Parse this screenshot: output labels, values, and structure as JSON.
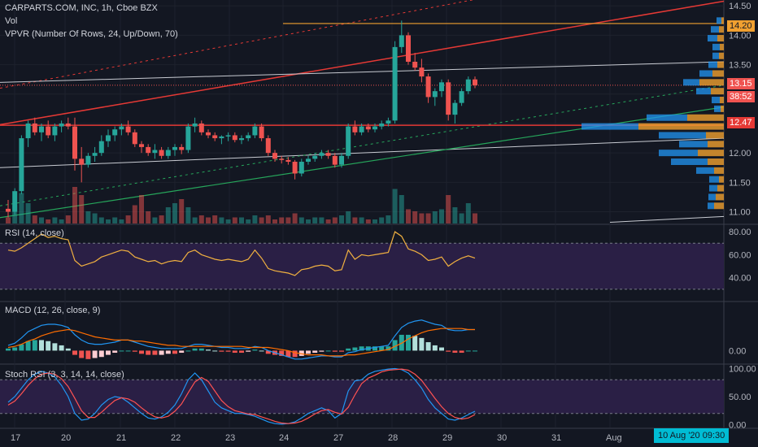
{
  "header": {
    "symbol_line": "CARPARTS.COM, INC, 1h, Cboe BZX",
    "vol_label": "Vol",
    "vpvr_label": "VPVR (Number Of Rows, 24, Up/Down, 70)"
  },
  "price_tags": {
    "last": "13.15",
    "countdown": "38:52",
    "level_1": "14.20",
    "level_2": "12.47"
  },
  "datetime_box": "10 Aug '20   09:30",
  "colors": {
    "background": "#131722",
    "up": "#26a69a",
    "down": "#ef5350",
    "orange": "#f0a030",
    "red_line": "#e53935",
    "green_line": "#26a65b",
    "rsi_fill": "#2a1f45",
    "macd_line": "#2196f3",
    "signal_line": "#ff6d00",
    "stoch_k": "#2196f3",
    "stoch_d": "#ff5252"
  },
  "chart_data": [
    {
      "type": "candlestick",
      "title": "CARPARTS.COM, INC, 1h, Cboe BZX",
      "x_ticks": [
        "17",
        "20",
        "21",
        "22",
        "23",
        "24",
        "27",
        "28",
        "29",
        "30",
        "31",
        "Aug"
      ],
      "y_ticks": [
        "14.50",
        "14.00",
        "13.50",
        "13.00",
        "12.50",
        "12.00",
        "11.50",
        "11.00"
      ],
      "ylim": [
        10.8,
        14.6
      ],
      "horizontal_levels": [
        14.2,
        12.47
      ],
      "ohlc": [
        [
          11.05,
          11.2,
          10.9,
          11.0
        ],
        [
          11.0,
          11.4,
          10.95,
          11.35
        ],
        [
          11.35,
          12.3,
          11.3,
          12.25
        ],
        [
          12.25,
          12.55,
          12.1,
          12.5
        ],
        [
          12.5,
          12.6,
          12.3,
          12.35
        ],
        [
          12.35,
          12.5,
          12.2,
          12.45
        ],
        [
          12.45,
          12.55,
          12.25,
          12.3
        ],
        [
          12.3,
          12.5,
          12.2,
          12.45
        ],
        [
          12.45,
          12.55,
          12.35,
          12.5
        ],
        [
          12.5,
          12.6,
          12.4,
          12.45
        ],
        [
          12.45,
          12.6,
          11.7,
          11.9
        ],
        [
          11.9,
          12.1,
          11.5,
          11.8
        ],
        [
          11.8,
          12.0,
          11.75,
          11.95
        ],
        [
          11.95,
          12.1,
          11.85,
          12.0
        ],
        [
          12.0,
          12.3,
          11.95,
          12.2
        ],
        [
          12.2,
          12.4,
          12.1,
          12.3
        ],
        [
          12.3,
          12.45,
          12.2,
          12.4
        ],
        [
          12.4,
          12.5,
          12.3,
          12.45
        ],
        [
          12.45,
          12.55,
          12.3,
          12.35
        ],
        [
          12.35,
          12.4,
          12.1,
          12.15
        ],
        [
          12.15,
          12.2,
          12.0,
          12.1
        ],
        [
          12.1,
          12.15,
          11.95,
          12.0
        ],
        [
          12.0,
          12.15,
          11.9,
          12.05
        ],
        [
          12.05,
          12.1,
          11.9,
          11.95
        ],
        [
          11.95,
          12.1,
          11.9,
          12.05
        ],
        [
          12.05,
          12.15,
          11.95,
          12.1
        ],
        [
          12.1,
          12.15,
          11.98,
          12.05
        ],
        [
          12.05,
          12.5,
          12.0,
          12.45
        ],
        [
          12.45,
          12.6,
          12.35,
          12.5
        ],
        [
          12.5,
          12.55,
          12.3,
          12.35
        ],
        [
          12.35,
          12.4,
          12.25,
          12.3
        ],
        [
          12.3,
          12.35,
          12.2,
          12.25
        ],
        [
          12.25,
          12.3,
          12.15,
          12.28
        ],
        [
          12.28,
          12.35,
          12.2,
          12.3
        ],
        [
          12.3,
          12.35,
          12.18,
          12.22
        ],
        [
          12.22,
          12.3,
          12.15,
          12.25
        ],
        [
          12.25,
          12.35,
          12.2,
          12.3
        ],
        [
          12.3,
          12.5,
          12.25,
          12.45
        ],
        [
          12.45,
          12.5,
          12.2,
          12.25
        ],
        [
          12.25,
          12.3,
          11.95,
          12.0
        ],
        [
          12.0,
          12.05,
          11.85,
          11.9
        ],
        [
          11.9,
          11.95,
          11.82,
          11.88
        ],
        [
          11.88,
          11.93,
          11.8,
          11.85
        ],
        [
          11.85,
          11.88,
          11.55,
          11.65
        ],
        [
          11.65,
          11.9,
          11.6,
          11.85
        ],
        [
          11.85,
          11.95,
          11.8,
          11.9
        ],
        [
          11.9,
          12.0,
          11.85,
          11.95
        ],
        [
          11.95,
          12.05,
          11.9,
          12.0
        ],
        [
          12.0,
          12.05,
          11.9,
          11.95
        ],
        [
          11.95,
          12.0,
          11.75,
          11.8
        ],
        [
          11.8,
          12.0,
          11.75,
          11.95
        ],
        [
          11.95,
          12.5,
          11.9,
          12.45
        ],
        [
          12.45,
          12.55,
          12.3,
          12.35
        ],
        [
          12.35,
          12.5,
          12.3,
          12.45
        ],
        [
          12.45,
          12.5,
          12.35,
          12.4
        ],
        [
          12.4,
          12.5,
          12.35,
          12.45
        ],
        [
          12.45,
          12.55,
          12.4,
          12.5
        ],
        [
          12.5,
          12.6,
          12.45,
          12.55
        ],
        [
          12.55,
          13.9,
          12.5,
          13.8
        ],
        [
          13.8,
          14.25,
          13.7,
          14.0
        ],
        [
          14.0,
          14.05,
          13.5,
          13.55
        ],
        [
          13.55,
          13.7,
          13.4,
          13.45
        ],
        [
          13.45,
          13.6,
          13.2,
          13.3
        ],
        [
          13.3,
          13.35,
          12.85,
          12.95
        ],
        [
          12.95,
          13.1,
          12.8,
          13.05
        ],
        [
          13.05,
          13.25,
          12.95,
          13.2
        ],
        [
          13.2,
          13.25,
          12.55,
          12.65
        ],
        [
          12.65,
          12.9,
          12.5,
          12.85
        ],
        [
          12.85,
          13.1,
          12.8,
          13.05
        ],
        [
          13.05,
          13.3,
          13.0,
          13.25
        ],
        [
          13.25,
          13.3,
          13.1,
          13.15
        ]
      ],
      "volume": [
        3,
        9,
        15,
        10,
        4,
        3,
        2,
        3,
        2,
        4,
        18,
        14,
        6,
        5,
        3,
        2,
        3,
        2,
        4,
        9,
        14,
        6,
        3,
        4,
        8,
        10,
        12,
        8,
        3,
        4,
        3,
        4,
        3,
        2,
        3,
        3,
        2,
        4,
        3,
        4,
        2,
        3,
        3,
        5,
        3,
        2,
        3,
        3,
        2,
        3,
        4,
        6,
        3,
        3,
        2,
        2,
        3,
        4,
        17,
        14,
        7,
        6,
        5,
        5,
        6,
        7,
        14,
        8,
        5,
        10,
        5
      ],
      "vpvr": [
        {
          "price": 14.25,
          "up": 6,
          "down": 3
        },
        {
          "price": 14.1,
          "up": 10,
          "down": 6
        },
        {
          "price": 13.95,
          "up": 12,
          "down": 8
        },
        {
          "price": 13.8,
          "up": 9,
          "down": 5
        },
        {
          "price": 13.65,
          "up": 8,
          "down": 6
        },
        {
          "price": 13.5,
          "up": 11,
          "down": 8
        },
        {
          "price": 13.35,
          "up": 16,
          "down": 14
        },
        {
          "price": 13.2,
          "up": 20,
          "down": 30
        },
        {
          "price": 13.05,
          "up": 18,
          "down": 16
        },
        {
          "price": 12.9,
          "up": 10,
          "down": 5
        },
        {
          "price": 12.75,
          "up": 8,
          "down": 4
        },
        {
          "price": 12.6,
          "up": 50,
          "down": 45
        },
        {
          "price": 12.45,
          "up": 70,
          "down": 105
        },
        {
          "price": 12.3,
          "up": 58,
          "down": 22
        },
        {
          "price": 12.15,
          "up": 35,
          "down": 20
        },
        {
          "price": 12.0,
          "up": 48,
          "down": 32
        },
        {
          "price": 11.85,
          "up": 45,
          "down": 20
        },
        {
          "price": 11.7,
          "up": 22,
          "down": 12
        },
        {
          "price": 11.55,
          "up": 12,
          "down": 6
        },
        {
          "price": 11.4,
          "up": 10,
          "down": 8
        },
        {
          "price": 11.25,
          "up": 9,
          "down": 10
        },
        {
          "price": 11.1,
          "up": 8,
          "down": 12
        }
      ]
    },
    {
      "type": "line",
      "title": "RSI (14, close)",
      "y_ticks": [
        "80.00",
        "60.00",
        "40.00"
      ],
      "ylim": [
        20,
        85
      ],
      "bands": [
        70,
        30
      ],
      "series": [
        {
          "values": [
            64,
            63,
            66,
            70,
            74,
            78,
            75,
            76,
            74,
            73,
            55,
            50,
            52,
            54,
            58,
            60,
            62,
            64,
            63,
            58,
            56,
            54,
            55,
            52,
            54,
            55,
            54,
            62,
            64,
            60,
            58,
            56,
            55,
            56,
            55,
            54,
            56,
            64,
            57,
            48,
            46,
            45,
            44,
            42,
            47,
            48,
            50,
            51,
            50,
            46,
            47,
            64,
            56,
            60,
            59,
            60,
            61,
            62,
            80,
            76,
            65,
            63,
            60,
            55,
            56,
            58,
            50,
            54,
            57,
            59,
            57
          ]
        }
      ]
    },
    {
      "type": "line",
      "title": "MACD (12, 26, close, 9)",
      "y_ticks": [
        "0.00"
      ],
      "ylim": [
        -0.12,
        0.45
      ],
      "series": [
        {
          "name": "MACD",
          "values": [
            0.05,
            0.07,
            0.12,
            0.18,
            0.21,
            0.24,
            0.25,
            0.25,
            0.24,
            0.22,
            0.15,
            0.1,
            0.07,
            0.06,
            0.06,
            0.07,
            0.08,
            0.1,
            0.1,
            0.08,
            0.06,
            0.04,
            0.03,
            0.02,
            0.02,
            0.02,
            0.02,
            0.04,
            0.06,
            0.06,
            0.05,
            0.04,
            0.03,
            0.03,
            0.02,
            0.02,
            0.02,
            0.04,
            0.03,
            0.0,
            -0.02,
            -0.04,
            -0.06,
            -0.08,
            -0.08,
            -0.07,
            -0.06,
            -0.05,
            -0.05,
            -0.06,
            -0.06,
            -0.02,
            -0.01,
            0.01,
            0.02,
            0.03,
            0.04,
            0.05,
            0.14,
            0.22,
            0.26,
            0.28,
            0.29,
            0.27,
            0.25,
            0.24,
            0.2,
            0.19,
            0.19,
            0.2,
            0.2
          ]
        },
        {
          "name": "Signal",
          "values": [
            0.03,
            0.04,
            0.06,
            0.09,
            0.11,
            0.14,
            0.16,
            0.18,
            0.19,
            0.2,
            0.19,
            0.17,
            0.15,
            0.13,
            0.12,
            0.11,
            0.1,
            0.1,
            0.1,
            0.09,
            0.09,
            0.08,
            0.07,
            0.06,
            0.05,
            0.05,
            0.04,
            0.04,
            0.04,
            0.04,
            0.04,
            0.04,
            0.04,
            0.04,
            0.04,
            0.04,
            0.03,
            0.03,
            0.03,
            0.03,
            0.02,
            0.01,
            0.0,
            -0.02,
            -0.03,
            -0.04,
            -0.04,
            -0.04,
            -0.05,
            -0.05,
            -0.05,
            -0.04,
            -0.04,
            -0.03,
            -0.02,
            -0.01,
            0.0,
            0.01,
            0.04,
            0.07,
            0.11,
            0.14,
            0.17,
            0.19,
            0.2,
            0.21,
            0.21,
            0.21,
            0.21,
            0.2,
            0.2
          ]
        }
      ]
    },
    {
      "type": "line",
      "title": "Stoch RSI (3, 3, 14, 14, close)",
      "y_ticks": [
        "100.00",
        "50.00",
        "0.00"
      ],
      "ylim": [
        -5,
        105
      ],
      "bands": [
        80,
        20
      ],
      "series": [
        {
          "name": "K",
          "values": [
            40,
            50,
            65,
            80,
            90,
            95,
            92,
            85,
            70,
            50,
            20,
            8,
            10,
            20,
            35,
            45,
            50,
            48,
            40,
            30,
            20,
            12,
            10,
            14,
            22,
            35,
            55,
            80,
            92,
            80,
            60,
            40,
            30,
            25,
            20,
            20,
            18,
            15,
            10,
            5,
            2,
            1,
            2,
            5,
            12,
            20,
            25,
            30,
            25,
            12,
            20,
            60,
            78,
            80,
            90,
            95,
            97,
            99,
            100,
            98,
            92,
            80,
            65,
            45,
            30,
            20,
            10,
            8,
            12,
            18,
            24
          ]
        },
        {
          "name": "D",
          "values": [
            35,
            42,
            55,
            70,
            82,
            90,
            92,
            90,
            82,
            68,
            47,
            25,
            13,
            13,
            22,
            33,
            43,
            48,
            46,
            40,
            30,
            21,
            14,
            12,
            15,
            24,
            37,
            57,
            76,
            84,
            77,
            60,
            43,
            32,
            25,
            22,
            19,
            18,
            14,
            10,
            6,
            3,
            2,
            3,
            6,
            12,
            19,
            25,
            27,
            22,
            19,
            31,
            53,
            73,
            83,
            88,
            94,
            97,
            98,
            99,
            97,
            90,
            79,
            63,
            47,
            32,
            20,
            13,
            10,
            12,
            18
          ]
        }
      ]
    }
  ]
}
